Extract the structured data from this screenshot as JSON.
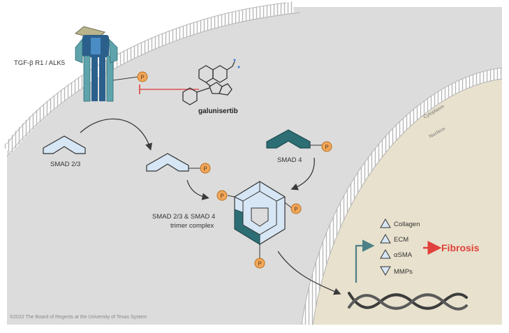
{
  "labels": {
    "receptor": "TGF-β R1 / ALK5",
    "inhibitor": "galunisertib",
    "smad23": "SMAD 2/3",
    "smad4": "SMAD 4",
    "complex_line1": "SMAD 2/3 & SMAD 4",
    "complex_line2": "trimer complex",
    "cytoplasm": "Cytoplasm",
    "nucleus": "Nucleus",
    "fibrosis": "Fibrosis",
    "copyright": "©2022 The Board of Regents at the University of Texas System"
  },
  "phosphate": "P",
  "gene_targets": [
    {
      "label": "Collagen",
      "direction": "up"
    },
    {
      "label": "ECM",
      "direction": "up"
    },
    {
      "label": "αSMA",
      "direction": "up"
    },
    {
      "label": "MMPs",
      "direction": "down"
    }
  ],
  "colors": {
    "cytoplasm": "#dcdcdc",
    "nucleus": "#e8e1cd",
    "smad_light": "#d6e6f4",
    "smad_dark": "#2c6e74",
    "phosphate": "#f2a65a",
    "inhibit": "#e05050",
    "fibrosis": "#e0413a"
  }
}
